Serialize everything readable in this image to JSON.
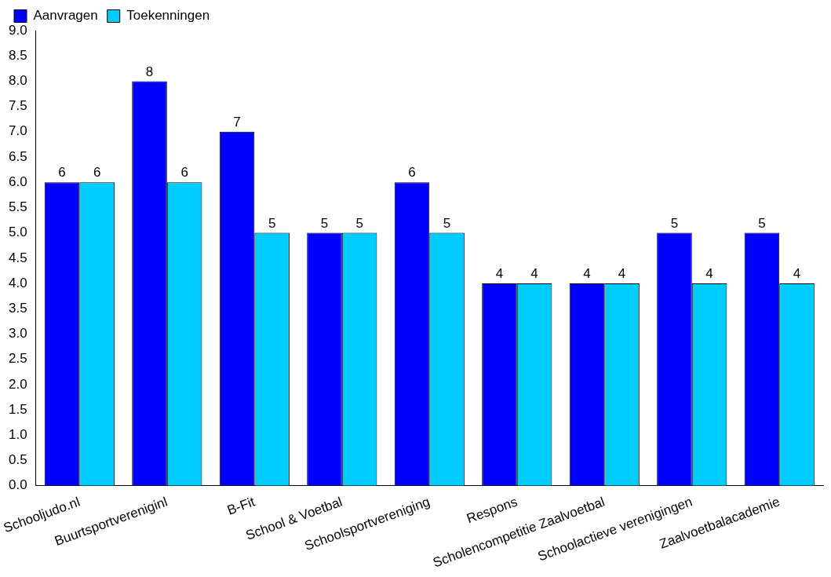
{
  "chart_data": {
    "type": "bar",
    "categories": [
      "Schooljudo.nl",
      "Buurtsportvereniginl",
      "B-Fit",
      "School & Voetbal",
      "Schoolsportvereniging",
      "Respons",
      "Scholencompetitie Zaalvoetbal",
      "Schoolactieve verenigingen",
      "Zaalvoetbalacademie"
    ],
    "series": [
      {
        "name": "Aanvragen",
        "color": "#0000ff",
        "values": [
          6,
          8,
          7,
          5,
          6,
          4,
          4,
          5,
          5
        ]
      },
      {
        "name": "Toekenningen",
        "color": "#00ccff",
        "values": [
          6,
          6,
          5,
          5,
          5,
          4,
          4,
          4,
          4
        ]
      }
    ],
    "ylim": [
      0,
      9
    ],
    "yticks": [
      {
        "value": 0,
        "label": "0.0"
      },
      0.5,
      {
        "value": 1,
        "label": "1.0"
      },
      1.5,
      {
        "value": 2,
        "label": "2.0"
      },
      2.5,
      {
        "value": 3,
        "label": "3.0"
      },
      3.5,
      {
        "value": 4,
        "label": "4.0"
      },
      4.5,
      {
        "value": 5,
        "label": "5.0"
      },
      5.5,
      {
        "value": 6,
        "label": "6.0"
      },
      6.5,
      {
        "value": 7,
        "label": "7.0"
      },
      7.5,
      {
        "value": 8,
        "label": "8.0"
      },
      8.5,
      {
        "value": 9,
        "label": "9.0"
      }
    ],
    "grid": false,
    "legend": "top-left",
    "data_labels": true
  }
}
